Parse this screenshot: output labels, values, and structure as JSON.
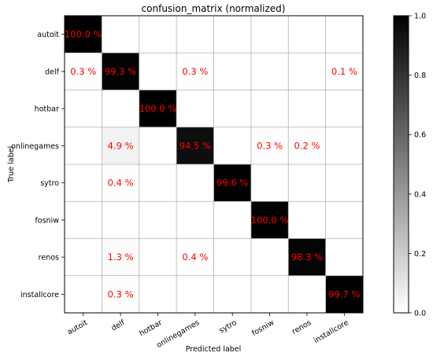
{
  "chart_data": {
    "type": "heatmap",
    "title": "confusion_matrix (normalized)",
    "xlabel": "Predicted label",
    "ylabel": "True label",
    "x_categories": [
      "autoit",
      "delf",
      "hotbar",
      "onlinegames",
      "sytro",
      "fosniw",
      "renos",
      "installcore"
    ],
    "y_categories": [
      "autoit",
      "delf",
      "hotbar",
      "onlinegames",
      "sytro",
      "fosniw",
      "renos",
      "installcore"
    ],
    "matrix": [
      [
        1.0,
        0,
        0,
        0,
        0,
        0,
        0,
        0
      ],
      [
        0.003,
        0.993,
        0,
        0.003,
        0,
        0,
        0,
        0.001
      ],
      [
        0,
        0,
        1.0,
        0,
        0,
        0,
        0,
        0
      ],
      [
        0,
        0.049,
        0,
        0.945,
        0,
        0.003,
        0.002,
        0
      ],
      [
        0,
        0.004,
        0,
        0,
        0.996,
        0,
        0,
        0
      ],
      [
        0,
        0,
        0,
        0,
        0,
        1.0,
        0,
        0
      ],
      [
        0,
        0.013,
        0,
        0.004,
        0,
        0,
        0.983,
        0
      ],
      [
        0,
        0.003,
        0,
        0,
        0,
        0,
        0,
        0.997
      ]
    ],
    "cell_labels": [
      [
        "100.0 %",
        "",
        "",
        "",
        "",
        "",
        "",
        ""
      ],
      [
        "0.3 %",
        "99.3 %",
        "",
        "0.3 %",
        "",
        "",
        "",
        "0.1 %"
      ],
      [
        "",
        "",
        "100.0 %",
        "",
        "",
        "",
        "",
        ""
      ],
      [
        "",
        "4.9 %",
        "",
        "94.5 %",
        "",
        "0.3 %",
        "0.2 %",
        ""
      ],
      [
        "",
        "0.4 %",
        "",
        "",
        "99.6 %",
        "",
        "",
        ""
      ],
      [
        "",
        "",
        "",
        "",
        "",
        "100.0 %",
        "",
        ""
      ],
      [
        "",
        "1.3 %",
        "",
        "0.4 %",
        "",
        "",
        "98.3 %",
        ""
      ],
      [
        "",
        "0.3 %",
        "",
        "",
        "",
        "",
        "",
        "99.7 %"
      ]
    ],
    "colorscale": {
      "name": "Greys",
      "min": 0.0,
      "max": 1.0,
      "low_color": "#ffffff",
      "high_color": "#000000"
    },
    "colorbar_ticks": [
      "0.0",
      "0.2",
      "0.4",
      "0.6",
      "0.8",
      "1.0"
    ],
    "colorbar_tick_values": [
      0.0,
      0.2,
      0.4,
      0.6,
      0.8,
      1.0
    ],
    "annotation_color": "#ff0000",
    "grid": true,
    "legend": "colorbar-right"
  }
}
